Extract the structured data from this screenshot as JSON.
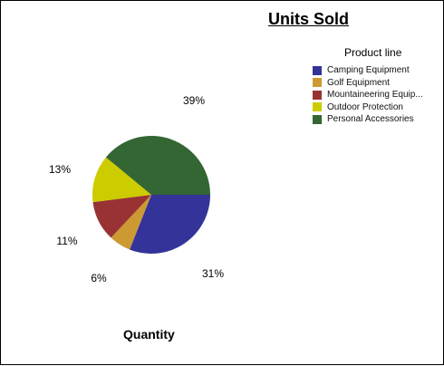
{
  "chart_data": {
    "type": "pie",
    "title": "Units Sold",
    "xlabel": "Quantity",
    "legend_title": "Product line",
    "legend_position": "top-right",
    "categories": [
      "Camping Equipment",
      "Golf Equipment",
      "Mountaineering Equip...",
      "Outdoor Protection",
      "Personal Accessories"
    ],
    "values": [
      31,
      6,
      11,
      13,
      39
    ],
    "labels": [
      "31%",
      "6%",
      "11%",
      "13%",
      "39%"
    ],
    "colors": [
      "#333399",
      "#CC9933",
      "#993333",
      "#CCCC00",
      "#336633"
    ]
  }
}
